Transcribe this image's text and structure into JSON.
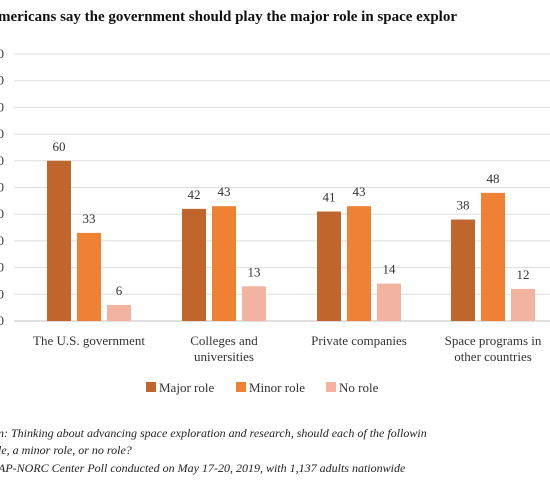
{
  "chart_data": {
    "type": "bar",
    "title": "mericans say the government should play the major role in space explor",
    "categories": [
      [
        "The U.S. government"
      ],
      [
        "Colleges and",
        "universities"
      ],
      [
        "Private companies"
      ],
      [
        "Space programs in",
        "other countries"
      ]
    ],
    "series": [
      {
        "name": "Major role",
        "values": [
          60,
          42,
          41,
          38
        ],
        "color": "#c0652b"
      },
      {
        "name": "Minor role",
        "values": [
          33,
          43,
          43,
          48
        ],
        "color": "#ee8133"
      },
      {
        "name": "No role",
        "values": [
          6,
          13,
          14,
          12
        ],
        "color": "#f2b3a1"
      }
    ],
    "ylim": [
      0,
      100
    ],
    "ytick_step": 10,
    "ytick_labels": [
      "0",
      "0",
      "0",
      "0",
      "0",
      "0",
      "0",
      "0",
      "0",
      "0",
      "0"
    ],
    "grid": true,
    "legend_position": "bottom",
    "notes": [
      "n: Thinking about advancing space exploration and research, should each of the followin",
      "le, a minor role, or no role?",
      "AP-NORC Center Poll conducted on May 17-20, 2019, with 1,137 adults nationwide"
    ],
    "colors": {
      "grid": "#dddddd",
      "axis": "#bfbfbf"
    }
  }
}
